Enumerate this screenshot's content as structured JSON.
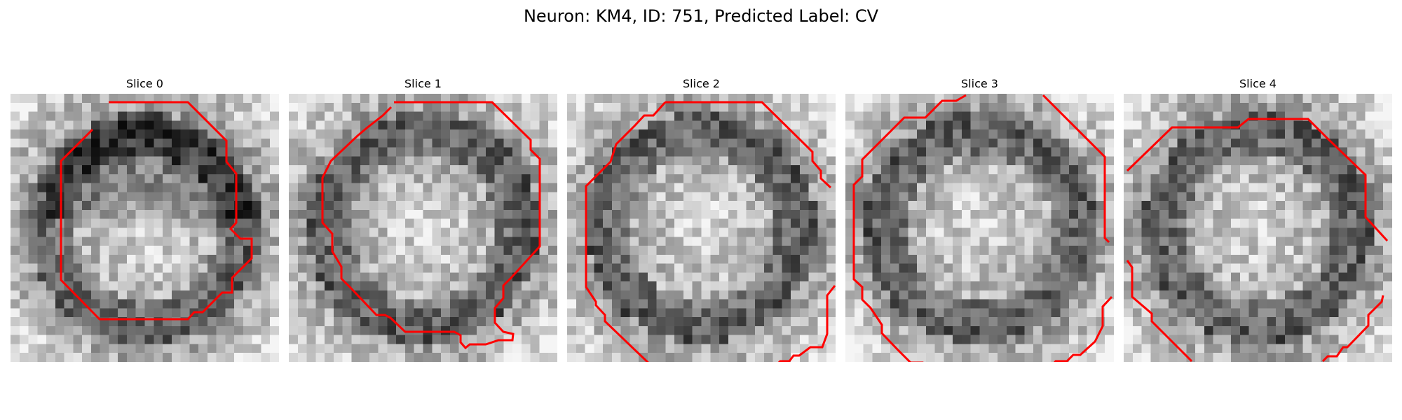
{
  "figure": {
    "title": "Neuron: KM4, ID: 751, Predicted Label: CV",
    "image_type": "grayscale microscopy slices with red contour overlays",
    "contour_color": "#ff0000",
    "panels": [
      {
        "title": "Slice 0"
      },
      {
        "title": "Slice 1"
      },
      {
        "title": "Slice 2"
      },
      {
        "title": "Slice 3"
      },
      {
        "title": "Slice 4"
      }
    ]
  }
}
